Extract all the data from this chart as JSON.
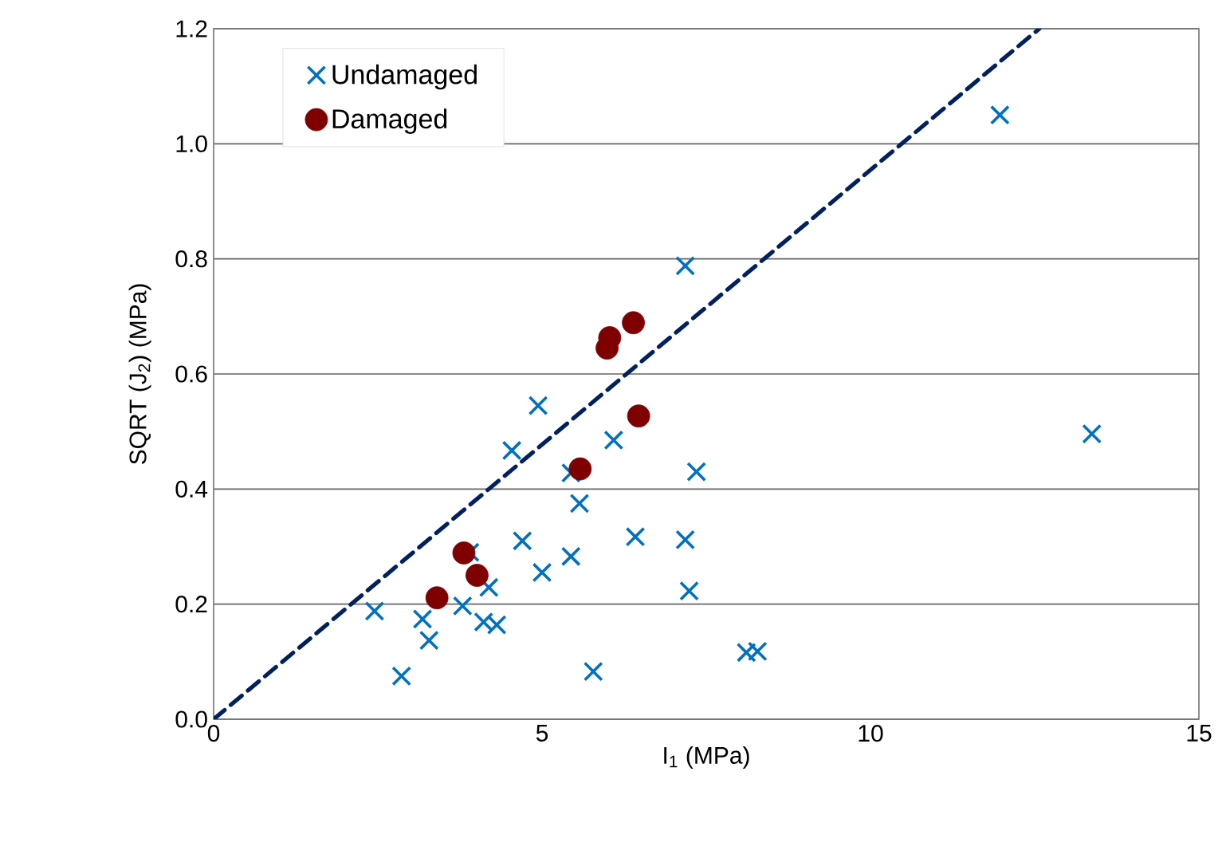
{
  "chart_data": {
    "type": "scatter",
    "xlabel": "I$_{1}$ (MPa)",
    "ylabel": "SQRT (J$_{2}$) (MPa)",
    "xlim": [
      0,
      15
    ],
    "xticks": [
      0,
      5,
      10,
      15
    ],
    "ylim": [
      0,
      1.2
    ],
    "yticks": [
      {
        "value": 0,
        "label": "0.0"
      },
      {
        "value": 0.2,
        "label": "0.2"
      },
      {
        "value": 0.4,
        "label": "0.4"
      },
      {
        "value": 0.6,
        "label": "0.6"
      },
      {
        "value": 0.8,
        "label": "0.8"
      },
      {
        "value": 1.0,
        "label": "1.0"
      },
      {
        "value": 1.2,
        "label": "1.2"
      }
    ],
    "grid": "y",
    "legend": "top left",
    "series": [
      {
        "name": "Undamaged",
        "color": "#0070c0",
        "marker": "cross",
        "x": [
          2.45,
          2.86,
          3.18,
          3.28,
          3.79,
          3.9,
          4.11,
          4.31,
          4.19,
          4.7,
          5.0,
          4.94,
          4.54,
          5.44,
          5.57,
          5.44,
          6.09,
          6.42,
          7.18,
          7.24,
          7.35,
          5.78,
          8.11,
          8.28,
          7.18,
          11.97,
          13.37
        ],
        "values": [
          0.188,
          0.075,
          0.174,
          0.137,
          0.197,
          0.29,
          0.169,
          0.164,
          0.229,
          0.31,
          0.255,
          0.545,
          0.467,
          0.283,
          0.375,
          0.428,
          0.485,
          0.317,
          0.312,
          0.223,
          0.43,
          0.083,
          0.116,
          0.118,
          0.788,
          1.05,
          0.496
        ]
      },
      {
        "name": "Damaged",
        "color": "#7f0000",
        "marker": "circle",
        "x": [
          3.4,
          3.81,
          4.01,
          5.58,
          6.47,
          5.99,
          6.03,
          6.39
        ],
        "values": [
          0.211,
          0.289,
          0.25,
          0.435,
          0.527,
          0.645,
          0.663,
          0.689
        ]
      },
      {
        "type": "line",
        "color": "#002060",
        "line_style": "dashed",
        "marker": "none",
        "x": [
          0,
          12.57
        ],
        "values": [
          0,
          1.2
        ]
      }
    ]
  }
}
